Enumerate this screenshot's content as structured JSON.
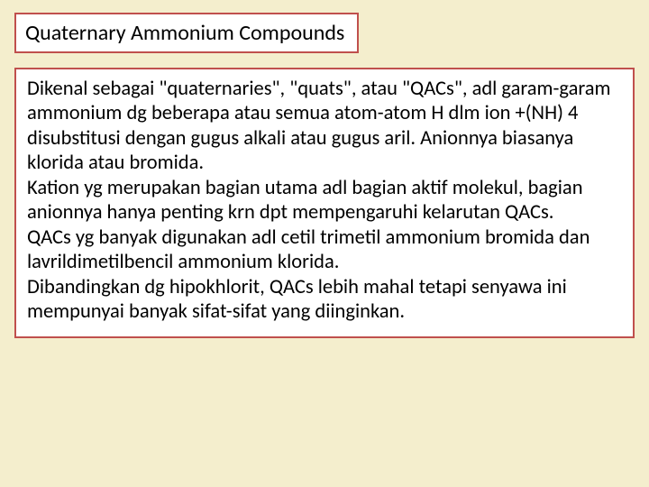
{
  "slide": {
    "background_color": "#f4eecd",
    "box_border_color": "#c0504d",
    "box_fill_color": "#ffffff",
    "title": {
      "text": "Quaternary Ammonium Compounds",
      "fontsize": 24,
      "color": "#000000"
    },
    "body": {
      "fontsize": 22.5,
      "color": "#000000",
      "paragraphs": [
        "Dikenal sebagai \"quaternaries\", \"quats\", atau \"QACs\", adl garam-garam ammonium dg beberapa atau semua atom-atom H dlm ion +(NH) 4 disubstitusi dengan gugus  alkali atau gugus aril. Anionnya biasanya klorida atau bromida.",
        "Kation yg merupakan bagian utama adl bagian aktif  molekul, bagian anionnya hanya penting krn dpt mempengaruhi kelarutan QACs.",
        "QACs  yg banyak digunakan adl cetil trimetil ammonium bromida dan lavrildimetilbencil ammonium klorida.",
        " Dibandingkan dg hipokhlorit, QACs lebih mahal tetapi senyawa ini mempunyai banyak sifat-sifat yang diinginkan."
      ]
    }
  }
}
